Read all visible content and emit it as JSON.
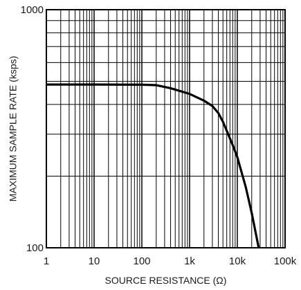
{
  "chart_data": {
    "type": "line",
    "title": "",
    "xlabel": "SOURCE RESISTANCE (Ω)",
    "ylabel": "MAXIMUM SAMPLE RATE (ksps)",
    "xscale": "log",
    "yscale": "log",
    "xlim": [
      1,
      100000
    ],
    "ylim": [
      100,
      1000
    ],
    "xticks": [
      1,
      10,
      100,
      1000,
      10000,
      100000
    ],
    "xtick_labels": [
      "1",
      "10",
      "100",
      "1k",
      "10k",
      "100k"
    ],
    "yticks": [
      100,
      1000
    ],
    "ytick_labels": [
      "100",
      "1000"
    ],
    "grid": true,
    "legend": "none",
    "series": [
      {
        "color": "#000000",
        "x": [
          1,
          10,
          100,
          200,
          400,
          1000,
          2000,
          3000,
          4000,
          5000,
          6000,
          8000,
          10000,
          15000,
          20000,
          25000,
          28000
        ],
        "y": [
          485,
          485,
          484,
          482,
          468,
          443,
          415,
          394,
          368,
          338,
          310,
          270,
          240,
          180,
          140,
          112,
          100
        ]
      }
    ]
  }
}
